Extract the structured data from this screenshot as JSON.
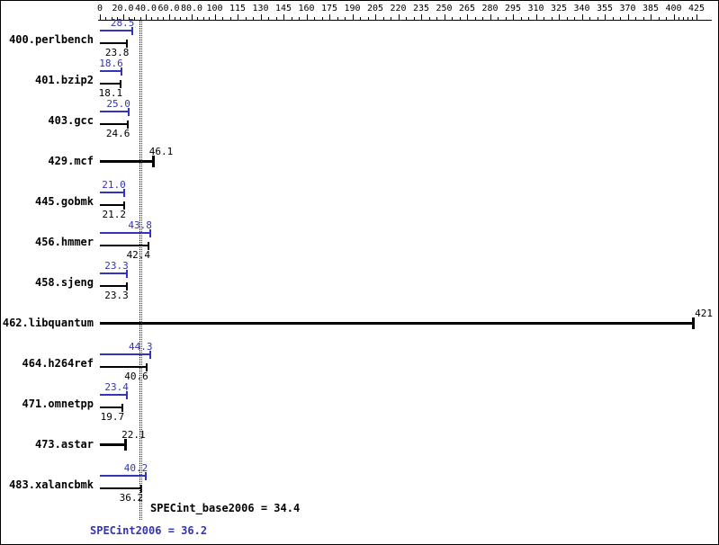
{
  "colors": {
    "peak": "#3333bb",
    "base": "#000000",
    "background": "#ffffff"
  },
  "chart_data": {
    "type": "bar",
    "orientation": "horizontal",
    "title": "",
    "xlabel": "",
    "ylabel": "",
    "grid": false,
    "legend": "none",
    "axis_ticks": [
      {
        "value": 0,
        "label": "0"
      },
      {
        "value": 20,
        "label": "20.0"
      },
      {
        "value": 40,
        "label": "40.0"
      },
      {
        "value": 60,
        "label": "60.0"
      },
      {
        "value": 80,
        "label": "80.0"
      },
      {
        "value": 100,
        "label": "100"
      },
      {
        "value": 115,
        "label": "115"
      },
      {
        "value": 130,
        "label": "130"
      },
      {
        "value": 145,
        "label": "145"
      },
      {
        "value": 160,
        "label": "160"
      },
      {
        "value": 175,
        "label": "175"
      },
      {
        "value": 190,
        "label": "190"
      },
      {
        "value": 205,
        "label": "205"
      },
      {
        "value": 220,
        "label": "220"
      },
      {
        "value": 235,
        "label": "235"
      },
      {
        "value": 250,
        "label": "250"
      },
      {
        "value": 265,
        "label": "265"
      },
      {
        "value": 280,
        "label": "280"
      },
      {
        "value": 295,
        "label": "295"
      },
      {
        "value": 310,
        "label": "310"
      },
      {
        "value": 325,
        "label": "325"
      },
      {
        "value": 340,
        "label": "340"
      },
      {
        "value": 355,
        "label": "355"
      },
      {
        "value": 370,
        "label": "370"
      },
      {
        "value": 385,
        "label": "385"
      },
      {
        "value": 400,
        "label": "400"
      },
      {
        "value": 425,
        "label": "425"
      }
    ],
    "scale_segments": [
      {
        "from": 0,
        "to": 100,
        "step": 20
      },
      {
        "from": 100,
        "to": 400,
        "step": 15
      },
      {
        "from": 400,
        "to": 425,
        "step": 25
      }
    ],
    "categories": [
      "400.perlbench",
      "401.bzip2",
      "403.gcc",
      "429.mcf",
      "445.gobmk",
      "456.hmmer",
      "458.sjeng",
      "462.libquantum",
      "464.h264ref",
      "471.omnetpp",
      "473.astar",
      "483.xalancbmk"
    ],
    "series": [
      {
        "name": "peak",
        "values": [
          28.5,
          18.6,
          25.0,
          null,
          21.0,
          43.8,
          23.3,
          null,
          44.3,
          23.4,
          null,
          40.2
        ]
      },
      {
        "name": "base",
        "values": [
          23.8,
          18.1,
          24.6,
          46.1,
          21.2,
          42.4,
          23.3,
          421,
          40.6,
          19.7,
          22.1,
          36.2
        ]
      }
    ],
    "benchmarks": [
      {
        "name": "400.perlbench",
        "single": false,
        "peak": 28.5,
        "peak_text": "28.5",
        "base": 23.8,
        "base_text": "23.8"
      },
      {
        "name": "401.bzip2",
        "single": false,
        "peak": 18.6,
        "peak_text": "18.6",
        "base": 18.1,
        "base_text": "18.1"
      },
      {
        "name": "403.gcc",
        "single": false,
        "peak": 25.0,
        "peak_text": "25.0",
        "base": 24.6,
        "base_text": "24.6"
      },
      {
        "name": "429.mcf",
        "single": true,
        "base": 46.1,
        "base_text": "46.1"
      },
      {
        "name": "445.gobmk",
        "single": false,
        "peak": 21.0,
        "peak_text": "21.0",
        "base": 21.2,
        "base_text": "21.2"
      },
      {
        "name": "456.hmmer",
        "single": false,
        "peak": 43.8,
        "peak_text": "43.8",
        "base": 42.4,
        "base_text": "42.4"
      },
      {
        "name": "458.sjeng",
        "single": false,
        "peak": 23.3,
        "peak_text": "23.3",
        "base": 23.3,
        "base_text": "23.3"
      },
      {
        "name": "462.libquantum",
        "single": true,
        "base": 421,
        "base_text": "421"
      },
      {
        "name": "464.h264ref",
        "single": false,
        "peak": 44.3,
        "peak_text": "44.3",
        "base": 40.6,
        "base_text": "40.6"
      },
      {
        "name": "471.omnetpp",
        "single": false,
        "peak": 23.4,
        "peak_text": "23.4",
        "base": 19.7,
        "base_text": "19.7"
      },
      {
        "name": "473.astar",
        "single": true,
        "base": 22.1,
        "base_text": "22.1"
      },
      {
        "name": "483.xalancbmk",
        "single": false,
        "peak": 40.2,
        "peak_text": "40.2",
        "base": 36.2,
        "base_text": "36.2"
      }
    ],
    "means": {
      "base_value": 34.4,
      "base_label": "SPECint_base2006 = 34.4",
      "peak_value": 36.2,
      "peak_label": "SPECint2006 = 36.2"
    }
  }
}
